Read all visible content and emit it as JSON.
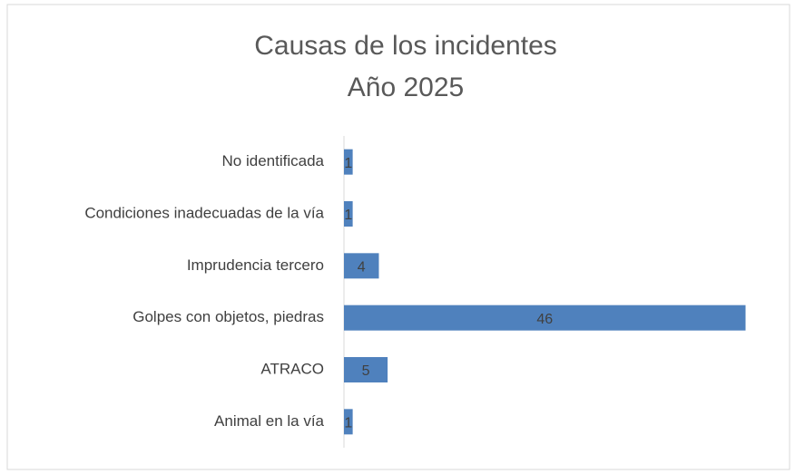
{
  "chart_data": {
    "type": "bar",
    "orientation": "horizontal",
    "title": "Causas de los incidentes",
    "subtitle": "Año 2025",
    "categories": [
      "No identificada",
      "Condiciones inadecuadas de la vía",
      "Imprudencia tercero",
      "Golpes con objetos, piedras",
      "ATRACO",
      "Animal en la vía"
    ],
    "values": [
      1,
      1,
      4,
      46,
      5,
      1
    ],
    "color": "#4f81bd",
    "xlim": [
      0,
      50
    ]
  }
}
